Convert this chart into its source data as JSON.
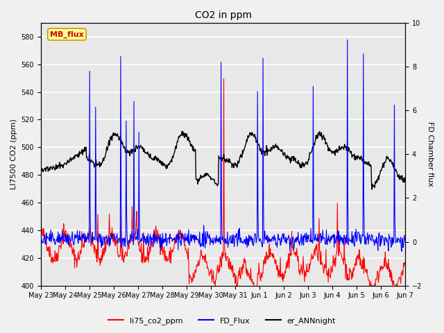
{
  "title": "CO2 in ppm",
  "ylabel_left": "LI7500 CO2 (ppm)",
  "ylabel_right": "FD Chamber flux",
  "annotation_text": "MB_flux",
  "ylim_left": [
    400,
    590
  ],
  "ylim_right": [
    -2,
    10
  ],
  "yticks_left": [
    400,
    420,
    440,
    460,
    480,
    500,
    520,
    540,
    560,
    580
  ],
  "yticks_right": [
    -2,
    0,
    2,
    4,
    6,
    8,
    10
  ],
  "xtick_labels": [
    "May 23",
    "May 24",
    "May 25",
    "May 26",
    "May 27",
    "May 28",
    "May 29",
    "May 30",
    "May 31",
    "Jun 1",
    "Jun 2",
    "Jun 3",
    "Jun 4",
    "Jun 5",
    "Jun 6",
    "Jun 7"
  ],
  "line_colors": {
    "li75": "#ff0000",
    "fd": "#0000ff",
    "ann": "#000000"
  },
  "line_widths": {
    "li75": 0.8,
    "fd": 0.8,
    "ann": 1.0
  },
  "legend_labels": [
    "li75_co2_ppm",
    "FD_Flux",
    "er_ANNnight"
  ],
  "bg_color": "#f0f0f0",
  "plot_bg_color": "#e8e8e8",
  "annotation_bbox": {
    "boxstyle": "round,pad=0.3",
    "facecolor": "#ffff99",
    "edgecolor": "#cc9900",
    "linewidth": 1.2
  },
  "annotation_fontsize": 8,
  "annotation_color": "#cc0000",
  "grid_color": "#ffffff",
  "n_points": 800,
  "title_fontsize": 10,
  "axis_fontsize": 8,
  "tick_fontsize": 7
}
